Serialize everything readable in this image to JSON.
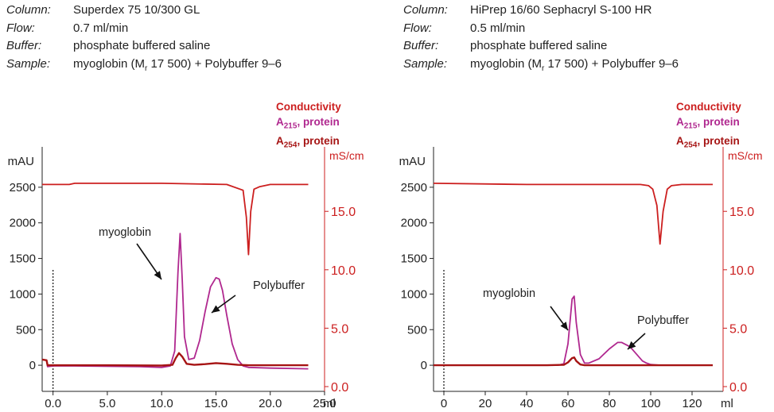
{
  "colors": {
    "conductivity": "#cc1f1f",
    "a215": "#b0288f",
    "a254": "#a61414",
    "axis_left": "#222222",
    "axis_right": "#cc1f1f"
  },
  "chart_data": [
    {
      "type": "line",
      "conditions": [
        {
          "key": "Column:",
          "value": "Superdex 75 10/300 GL"
        },
        {
          "key": "Flow:",
          "value": "0.7 ml/min"
        },
        {
          "key": "Buffer:",
          "value": "phosphate buffered saline"
        },
        {
          "key": "Sample:",
          "value_pre": "myoglobin (M",
          "value_sub": "r",
          "value_post": " 17 500) + Polybuffer 9–6"
        }
      ],
      "legend": {
        "conductivity": "Conductivity",
        "a215_main": "A",
        "a215_sub": "215",
        "a215_rest": ", protein",
        "a254_main": "A",
        "a254_sub": "254",
        "a254_rest": ", protein"
      },
      "ylabel": "mAU",
      "y2label": "mS/cm",
      "xlabel": "ml",
      "xlim": [
        -1.0,
        25.0
      ],
      "ylim": [
        -300,
        2900
      ],
      "y2lim": [
        0.0,
        19.5
      ],
      "x_ticks": [
        "0.0",
        "5.0",
        "10.0",
        "15.0",
        "20.0",
        "25.0"
      ],
      "y_ticks": [
        "0",
        "500",
        "1000",
        "1500",
        "2000",
        "2500"
      ],
      "y2_ticks": [
        "0.0",
        "5.0",
        "10.0",
        "15.0"
      ],
      "injection_x": 0.0,
      "annotations": [
        {
          "text": "myoglobin",
          "x": 11.6,
          "y": 1850
        },
        {
          "text": "Polybuffer",
          "x": 15.2,
          "y": 1230
        }
      ],
      "series": [
        {
          "name": "Conductivity",
          "axis": "right",
          "color": "#cc1f1f",
          "x": [
            -1.0,
            1.5,
            2.0,
            10.0,
            16.0,
            17.5,
            17.8,
            18.0,
            18.2,
            18.5,
            19.0,
            20.0,
            22.0,
            23.5
          ],
          "y": [
            17.3,
            17.3,
            17.4,
            17.4,
            17.3,
            16.8,
            14.5,
            11.3,
            15.0,
            16.9,
            17.1,
            17.3,
            17.3,
            17.3
          ]
        },
        {
          "name": "A215, protein",
          "axis": "left",
          "color": "#b0288f",
          "x": [
            -1.0,
            -0.6,
            -0.5,
            0.0,
            2.0,
            8.0,
            10.0,
            10.8,
            11.2,
            11.5,
            11.7,
            11.9,
            12.1,
            12.5,
            13.0,
            13.5,
            14.0,
            14.5,
            15.0,
            15.3,
            15.6,
            16.0,
            16.5,
            17.0,
            17.5,
            18.0,
            20.0,
            23.5
          ],
          "y": [
            80,
            70,
            -20,
            -10,
            -10,
            -20,
            -30,
            -10,
            200,
            1300,
            1850,
            1200,
            400,
            80,
            100,
            350,
            750,
            1100,
            1230,
            1210,
            1050,
            700,
            300,
            80,
            -10,
            -30,
            -40,
            -50
          ]
        },
        {
          "name": "A254, protein",
          "axis": "left",
          "color": "#a61414",
          "x": [
            -1.0,
            -0.6,
            -0.5,
            0.0,
            5.0,
            10.0,
            11.0,
            11.3,
            11.6,
            11.9,
            12.3,
            13.0,
            14.0,
            15.0,
            16.0,
            17.0,
            18.0,
            20.0,
            23.5
          ],
          "y": [
            80,
            70,
            0,
            0,
            0,
            -5,
            5,
            100,
            170,
            120,
            20,
            5,
            15,
            30,
            20,
            5,
            0,
            0,
            0
          ]
        }
      ]
    },
    {
      "type": "line",
      "conditions": [
        {
          "key": "Column:",
          "value": "HiPrep 16/60 Sephacryl S-100 HR"
        },
        {
          "key": "Flow:",
          "value": "0.5 ml/min"
        },
        {
          "key": "Buffer:",
          "value": "phosphate buffered saline"
        },
        {
          "key": "Sample:",
          "value_pre": "myoglobin (M",
          "value_sub": "r",
          "value_post": " 17 500) + Polybuffer 9–6"
        }
      ],
      "legend": {
        "conductivity": "Conductivity",
        "a215_main": "A",
        "a215_sub": "215",
        "a215_rest": ", protein",
        "a254_main": "A",
        "a254_sub": "254",
        "a254_rest": ", protein"
      },
      "ylabel": "mAU",
      "y2label": "mS/cm",
      "xlabel": "ml",
      "xlim": [
        -5,
        135
      ],
      "ylim": [
        -300,
        2900
      ],
      "y2lim": [
        0.0,
        19.5
      ],
      "x_ticks": [
        "0",
        "20",
        "40",
        "60",
        "80",
        "100",
        "120"
      ],
      "y_ticks": [
        "0",
        "500",
        "1000",
        "1500",
        "2000",
        "2500"
      ],
      "y2_ticks": [
        "0.0",
        "5.0",
        "10.0",
        "15.0"
      ],
      "injection_x": 0,
      "annotations": [
        {
          "text": "myoglobin",
          "x": 62.5,
          "y": 970
        },
        {
          "text": "Polybuffer",
          "x": 85,
          "y": 330
        }
      ],
      "series": [
        {
          "name": "Conductivity",
          "axis": "right",
          "color": "#cc1f1f",
          "x": [
            -5,
            40,
            70,
            95,
            99,
            101,
            103,
            104.5,
            106,
            108,
            110,
            115,
            130
          ],
          "y": [
            17.4,
            17.3,
            17.3,
            17.3,
            17.2,
            16.9,
            15.5,
            12.2,
            15.0,
            16.9,
            17.2,
            17.3,
            17.3
          ]
        },
        {
          "name": "A215, protein",
          "axis": "left",
          "color": "#b0288f",
          "x": [
            -5,
            30,
            55,
            58,
            60,
            62,
            63,
            64,
            66,
            68,
            70,
            75,
            80,
            84,
            86,
            90,
            93,
            96,
            98,
            100,
            105,
            130
          ],
          "y": [
            0,
            0,
            0,
            20,
            300,
            930,
            970,
            600,
            150,
            30,
            30,
            90,
            230,
            320,
            320,
            260,
            160,
            60,
            30,
            10,
            0,
            0
          ]
        },
        {
          "name": "A254, protein",
          "axis": "left",
          "color": "#a61414",
          "x": [
            -5,
            50,
            58,
            60,
            62,
            63,
            64,
            66,
            68,
            80,
            130
          ],
          "y": [
            0,
            0,
            5,
            40,
            100,
            110,
            60,
            10,
            0,
            0,
            0
          ]
        }
      ]
    }
  ]
}
